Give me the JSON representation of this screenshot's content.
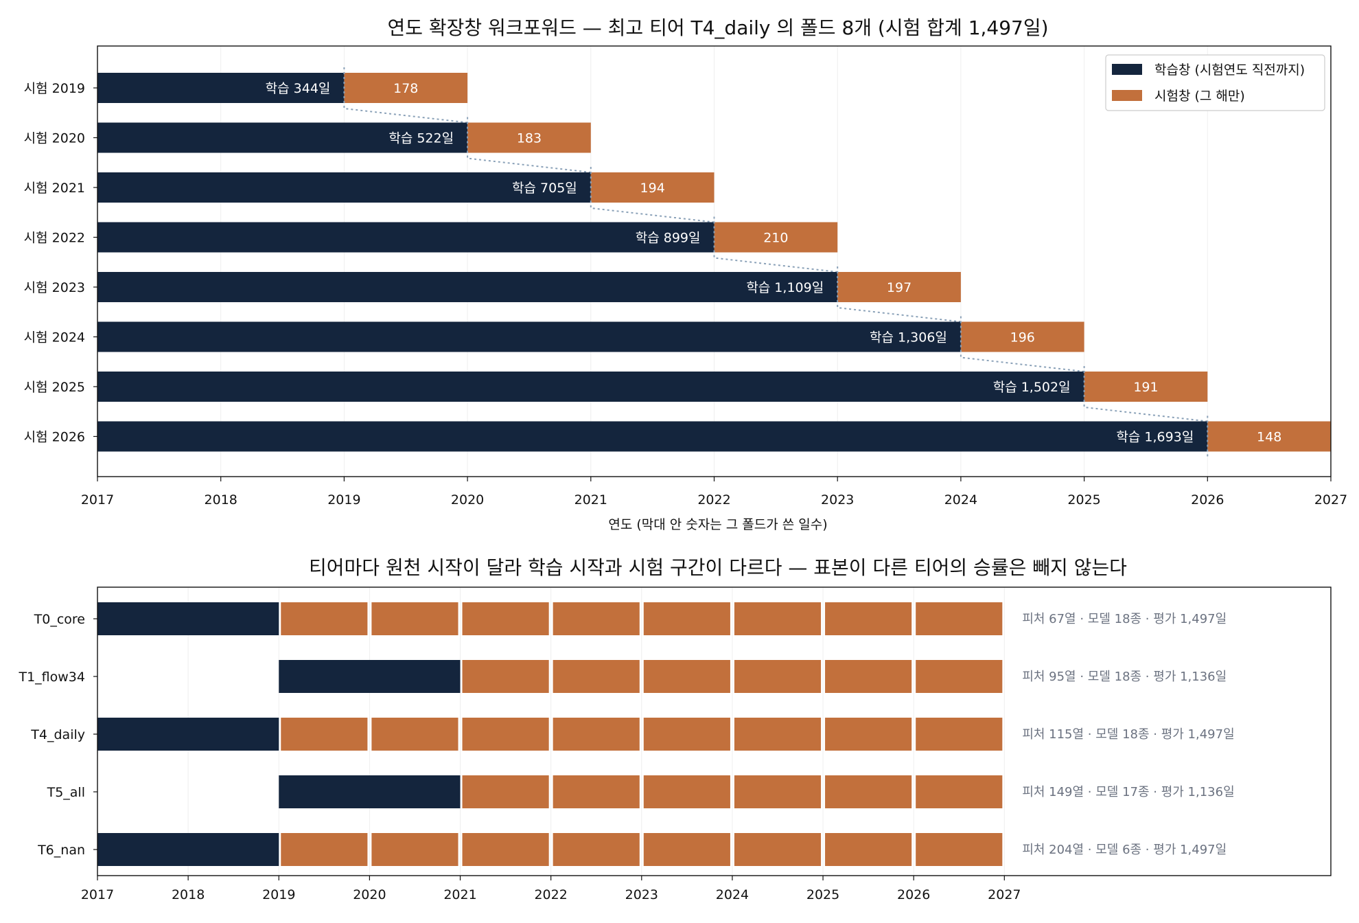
{
  "colors": {
    "train": "#14253d",
    "test": "#c2703c",
    "connector": "#8aa1b8",
    "grid": "#eeeeee",
    "axis": "#111111",
    "note": "#6b7280"
  },
  "chart_data": [
    {
      "type": "bar",
      "orientation": "horizontal-stacked-gantt",
      "title": "연도 확장창 워크포워드 — 최고 티어 T4_daily 의 폴드 8개 (시험 합계 1,497일)",
      "xlabel": "연도 (막대 안 숫자는 그 폴드가 쓴 일수)",
      "xlim": [
        2017,
        2027
      ],
      "xticks": [
        "2017",
        "2018",
        "2019",
        "2020",
        "2021",
        "2022",
        "2023",
        "2024",
        "2025",
        "2026",
        "2027"
      ],
      "legend": {
        "placement": "top-right",
        "entries": [
          {
            "series": "train",
            "label": "학습창 (시험연도 직전까지)"
          },
          {
            "series": "test",
            "label": "시험창 (그 해만)"
          }
        ]
      },
      "grid": "vertical",
      "folds": [
        {
          "label": "시험 2019",
          "train_start": 2017,
          "split": 2019,
          "test_end": 2020,
          "train_text": "학습 344일",
          "test_text": "178"
        },
        {
          "label": "시험 2020",
          "train_start": 2017,
          "split": 2020,
          "test_end": 2021,
          "train_text": "학습 522일",
          "test_text": "183"
        },
        {
          "label": "시험 2021",
          "train_start": 2017,
          "split": 2021,
          "test_end": 2022,
          "train_text": "학습 705일",
          "test_text": "194"
        },
        {
          "label": "시험 2022",
          "train_start": 2017,
          "split": 2022,
          "test_end": 2023,
          "train_text": "학습 899일",
          "test_text": "210"
        },
        {
          "label": "시험 2023",
          "train_start": 2017,
          "split": 2023,
          "test_end": 2024,
          "train_text": "학습 1,109일",
          "test_text": "197"
        },
        {
          "label": "시험 2024",
          "train_start": 2017,
          "split": 2024,
          "test_end": 2025,
          "train_text": "학습 1,306일",
          "test_text": "196"
        },
        {
          "label": "시험 2025",
          "train_start": 2017,
          "split": 2025,
          "test_end": 2026,
          "train_text": "학습 1,502일",
          "test_text": "191"
        },
        {
          "label": "시험 2026",
          "train_start": 2017,
          "split": 2026,
          "test_end": 2027,
          "train_text": "학습 1,693일",
          "test_text": "148"
        }
      ]
    },
    {
      "type": "bar",
      "orientation": "horizontal-gantt",
      "title": "티어마다 원천 시작이 달라 학습 시작과 시험 구간이 다르다 — 표본이 다른 티어의 승률은 빼지 않는다",
      "xlim": [
        2017,
        2030.6
      ],
      "xticks": [
        "2017",
        "2018",
        "2019",
        "2020",
        "2021",
        "2022",
        "2023",
        "2024",
        "2025",
        "2026",
        "2027"
      ],
      "grid": "vertical",
      "tiers": [
        {
          "label": "T0_core",
          "train": [
            2017,
            2019
          ],
          "tests": [
            [
              2019,
              2020
            ],
            [
              2020,
              2021
            ],
            [
              2021,
              2022
            ],
            [
              2022,
              2023
            ],
            [
              2023,
              2024
            ],
            [
              2024,
              2025
            ],
            [
              2025,
              2026
            ],
            [
              2026,
              2027
            ]
          ],
          "note": "피처 67열 · 모델 18종 · 평가 1,497일"
        },
        {
          "label": "T1_flow34",
          "train": [
            2019,
            2021
          ],
          "tests": [
            [
              2021,
              2022
            ],
            [
              2022,
              2023
            ],
            [
              2023,
              2024
            ],
            [
              2024,
              2025
            ],
            [
              2025,
              2026
            ],
            [
              2026,
              2027
            ]
          ],
          "note": "피처 95열 · 모델 18종 · 평가 1,136일"
        },
        {
          "label": "T4_daily",
          "train": [
            2017,
            2019
          ],
          "tests": [
            [
              2019,
              2020
            ],
            [
              2020,
              2021
            ],
            [
              2021,
              2022
            ],
            [
              2022,
              2023
            ],
            [
              2023,
              2024
            ],
            [
              2024,
              2025
            ],
            [
              2025,
              2026
            ],
            [
              2026,
              2027
            ]
          ],
          "note": "피처 115열 · 모델 18종 · 평가 1,497일"
        },
        {
          "label": "T5_all",
          "train": [
            2019,
            2021
          ],
          "tests": [
            [
              2021,
              2022
            ],
            [
              2022,
              2023
            ],
            [
              2023,
              2024
            ],
            [
              2024,
              2025
            ],
            [
              2025,
              2026
            ],
            [
              2026,
              2027
            ]
          ],
          "note": "피처 149열 · 모델 17종 · 평가 1,136일"
        },
        {
          "label": "T6_nan",
          "train": [
            2017,
            2019
          ],
          "tests": [
            [
              2019,
              2020
            ],
            [
              2020,
              2021
            ],
            [
              2021,
              2022
            ],
            [
              2022,
              2023
            ],
            [
              2023,
              2024
            ],
            [
              2024,
              2025
            ],
            [
              2025,
              2026
            ],
            [
              2026,
              2027
            ]
          ],
          "note": "피처 204열 · 모델 6종 · 평가 1,497일"
        }
      ]
    }
  ]
}
